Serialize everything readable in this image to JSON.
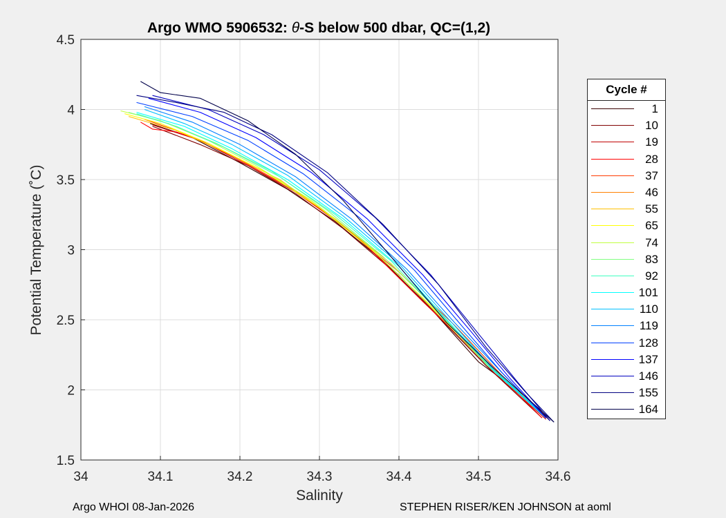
{
  "chart_data": {
    "type": "line",
    "title_prefix": "Argo WMO 5906532: ",
    "title_theta": "θ",
    "title_suffix": "-S below 500 dbar,  QC=(1,2)",
    "xlabel": "Salinity",
    "ylabel": "Potential Temperature (˚C)",
    "xlim": [
      34.0,
      34.6
    ],
    "ylim": [
      1.5,
      4.5
    ],
    "xticks": [
      "34",
      "34.1",
      "34.2",
      "34.3",
      "34.4",
      "34.5",
      "34.6"
    ],
    "yticks": [
      "1.5",
      "2",
      "2.5",
      "3",
      "3.5",
      "4",
      "4.5"
    ],
    "grid": true,
    "legend_title": "Cycle #",
    "legend": [
      {
        "label": "1",
        "color": "#3a0000"
      },
      {
        "label": "10",
        "color": "#800000"
      },
      {
        "label": "19",
        "color": "#c00000"
      },
      {
        "label": "28",
        "color": "#ff0000"
      },
      {
        "label": "37",
        "color": "#ff3a00"
      },
      {
        "label": "46",
        "color": "#ff8000"
      },
      {
        "label": "55",
        "color": "#ffc000"
      },
      {
        "label": "65",
        "color": "#ffff00"
      },
      {
        "label": "74",
        "color": "#c0ff40"
      },
      {
        "label": "83",
        "color": "#80ff80"
      },
      {
        "label": "92",
        "color": "#40ffc0"
      },
      {
        "label": "101",
        "color": "#00ffff"
      },
      {
        "label": "110",
        "color": "#00c0ff"
      },
      {
        "label": "119",
        "color": "#0080ff"
      },
      {
        "label": "128",
        "color": "#0040ff"
      },
      {
        "label": "137",
        "color": "#0000ff"
      },
      {
        "label": "146",
        "color": "#0000c0"
      },
      {
        "label": "155",
        "color": "#000080"
      },
      {
        "label": "164",
        "color": "#00004a"
      }
    ],
    "series": [
      {
        "name": "1",
        "color": "#3a0000",
        "x": [
          34.087,
          34.14,
          34.2,
          34.26,
          34.32,
          34.38,
          34.44,
          34.5,
          34.56,
          34.59
        ],
        "y": [
          3.9,
          3.8,
          3.62,
          3.43,
          3.2,
          2.92,
          2.58,
          2.2,
          1.95,
          1.78
        ]
      },
      {
        "name": "10",
        "color": "#800000",
        "x": [
          34.09,
          34.15,
          34.21,
          34.27,
          34.33,
          34.39,
          34.45,
          34.51,
          34.58
        ],
        "y": [
          3.88,
          3.75,
          3.6,
          3.4,
          3.15,
          2.86,
          2.52,
          2.17,
          1.8
        ]
      },
      {
        "name": "19",
        "color": "#c00000",
        "x": [
          34.09,
          34.15,
          34.21,
          34.28,
          34.34,
          34.4,
          34.46,
          34.52,
          34.585
        ],
        "y": [
          3.89,
          3.78,
          3.6,
          3.38,
          3.12,
          2.82,
          2.47,
          2.12,
          1.79
        ]
      },
      {
        "name": "28",
        "color": "#ff0000",
        "x": [
          34.075,
          34.09,
          34.12,
          34.15,
          34.2,
          34.27,
          34.35,
          34.43,
          34.5,
          34.58
        ],
        "y": [
          3.91,
          3.86,
          3.84,
          3.78,
          3.64,
          3.42,
          3.08,
          2.63,
          2.25,
          1.8
        ]
      },
      {
        "name": "37",
        "color": "#ff3a00",
        "x": [
          34.08,
          34.13,
          34.19,
          34.26,
          34.33,
          34.4,
          34.47,
          34.53,
          34.585
        ],
        "y": [
          3.93,
          3.83,
          3.67,
          3.45,
          3.17,
          2.84,
          2.46,
          2.1,
          1.8
        ]
      },
      {
        "name": "55",
        "color": "#ffc000",
        "x": [
          34.06,
          34.12,
          34.18,
          34.25,
          34.32,
          34.39,
          34.46,
          34.52,
          34.585
        ],
        "y": [
          3.95,
          3.85,
          3.7,
          3.5,
          3.22,
          2.9,
          2.5,
          2.13,
          1.8
        ]
      },
      {
        "name": "65",
        "color": "#ffff00",
        "x": [
          34.055,
          34.1,
          34.16,
          34.23,
          34.3,
          34.37,
          34.44,
          34.51,
          34.585
        ],
        "y": [
          3.97,
          3.9,
          3.76,
          3.56,
          3.3,
          2.98,
          2.6,
          2.2,
          1.8
        ]
      },
      {
        "name": "74",
        "color": "#c0ff40",
        "x": [
          34.05,
          34.1,
          34.16,
          34.22,
          34.29,
          34.36,
          34.43,
          34.5,
          34.585
        ],
        "y": [
          3.99,
          3.92,
          3.78,
          3.6,
          3.35,
          3.04,
          2.65,
          2.24,
          1.8
        ]
      },
      {
        "name": "83",
        "color": "#80ff80",
        "x": [
          34.06,
          34.11,
          34.17,
          34.24,
          34.31,
          34.38,
          34.45,
          34.51,
          34.585
        ],
        "y": [
          3.98,
          3.9,
          3.76,
          3.56,
          3.28,
          2.95,
          2.56,
          2.18,
          1.8
        ]
      },
      {
        "name": "92",
        "color": "#40ffc0",
        "x": [
          34.07,
          34.12,
          34.18,
          34.25,
          34.32,
          34.39,
          34.45,
          34.52,
          34.585
        ],
        "y": [
          3.97,
          3.88,
          3.73,
          3.52,
          3.25,
          2.92,
          2.55,
          2.15,
          1.8
        ]
      },
      {
        "name": "101",
        "color": "#00ffff",
        "x": [
          34.07,
          34.13,
          34.19,
          34.26,
          34.33,
          34.4,
          34.46,
          34.52,
          34.585
        ],
        "y": [
          3.98,
          3.88,
          3.72,
          3.5,
          3.22,
          2.88,
          2.5,
          2.13,
          1.8
        ]
      },
      {
        "name": "110",
        "color": "#00c0ff",
        "x": [
          34.08,
          34.13,
          34.19,
          34.26,
          34.33,
          34.4,
          34.46,
          34.52,
          34.585
        ],
        "y": [
          4.0,
          3.9,
          3.75,
          3.53,
          3.24,
          2.9,
          2.52,
          2.14,
          1.8
        ]
      },
      {
        "name": "119",
        "color": "#0080ff",
        "x": [
          34.08,
          34.14,
          34.2,
          34.27,
          34.34,
          34.41,
          34.47,
          34.53,
          34.585
        ],
        "y": [
          4.02,
          3.91,
          3.75,
          3.52,
          3.22,
          2.86,
          2.48,
          2.12,
          1.8
        ]
      },
      {
        "name": "128",
        "color": "#0040ff",
        "x": [
          34.07,
          34.14,
          34.21,
          34.28,
          34.35,
          34.42,
          34.48,
          34.53,
          34.585
        ],
        "y": [
          4.05,
          3.95,
          3.78,
          3.54,
          3.23,
          2.85,
          2.45,
          2.12,
          1.8
        ]
      },
      {
        "name": "137",
        "color": "#0000ff",
        "x": [
          34.085,
          34.15,
          34.22,
          34.29,
          34.36,
          34.43,
          34.49,
          34.54,
          34.585
        ],
        "y": [
          4.08,
          3.98,
          3.8,
          3.55,
          3.22,
          2.82,
          2.42,
          2.08,
          1.8
        ]
      },
      {
        "name": "146",
        "color": "#0000c0",
        "x": [
          34.09,
          34.16,
          34.23,
          34.3,
          34.37,
          34.44,
          34.5,
          34.55,
          34.59
        ],
        "y": [
          4.1,
          4.0,
          3.82,
          3.57,
          3.23,
          2.82,
          2.4,
          2.05,
          1.78
        ]
      },
      {
        "name": "155",
        "color": "#000080",
        "x": [
          34.07,
          34.12,
          34.18,
          34.24,
          34.31,
          34.38,
          34.45,
          34.51,
          34.56,
          34.595
        ],
        "y": [
          4.1,
          4.05,
          3.98,
          3.82,
          3.55,
          3.18,
          2.75,
          2.3,
          1.98,
          1.77
        ]
      },
      {
        "name": "164",
        "color": "#00004a",
        "x": [
          34.075,
          34.1,
          34.15,
          34.21,
          34.27,
          34.33,
          34.39,
          34.46,
          34.52,
          34.595
        ],
        "y": [
          4.2,
          4.12,
          4.08,
          3.92,
          3.68,
          3.35,
          2.95,
          2.48,
          2.15,
          1.77
        ]
      }
    ]
  },
  "footer": {
    "left": "Argo WHOI 08-Jan-2026",
    "right": "STEPHEN RISER/KEN JOHNSON at aoml"
  }
}
